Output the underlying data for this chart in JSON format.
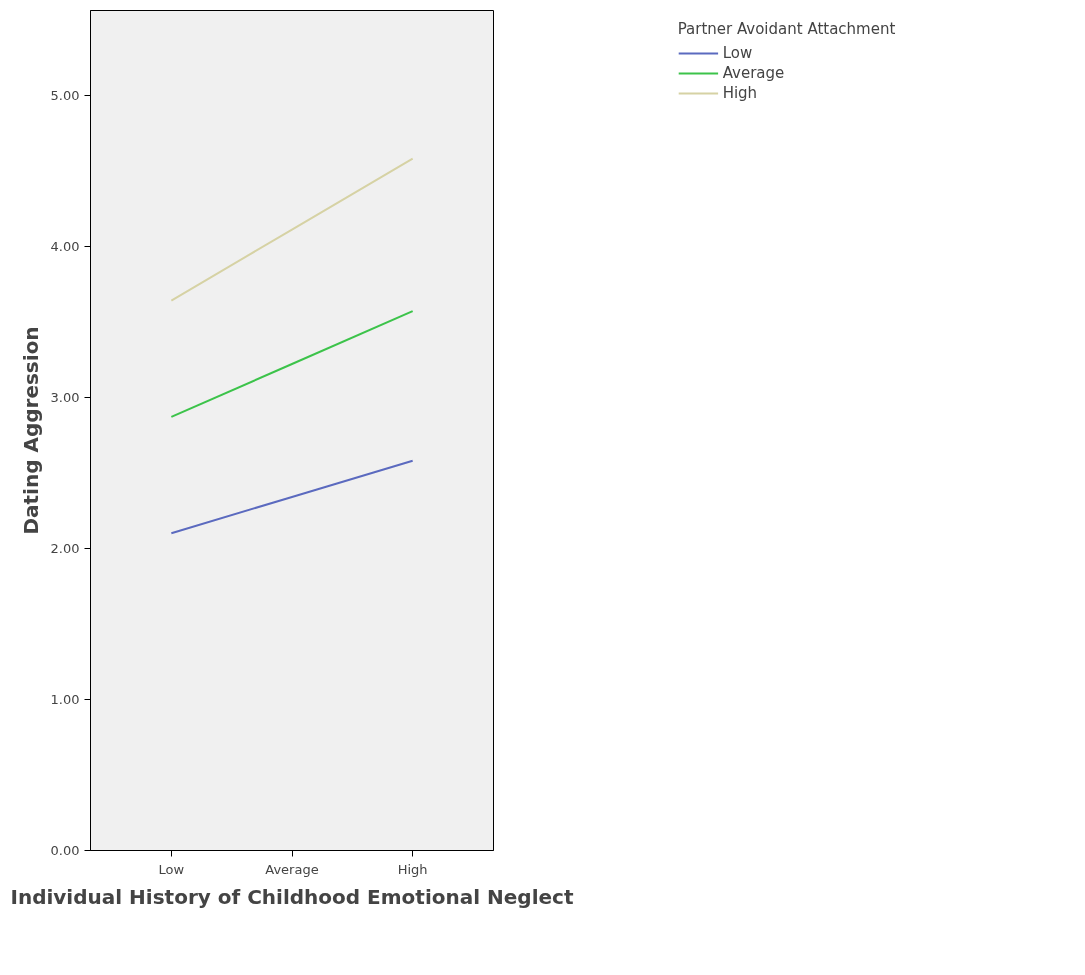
{
  "chart_data": {
    "type": "line",
    "xlabel": "Individual History of Childhood Emotional Neglect",
    "ylabel": "Dating Aggression",
    "legend_title": "Partner Avoidant Attachment",
    "categories": [
      "Low",
      "Average",
      "High"
    ],
    "series": [
      {
        "name": "Low",
        "color": "#5b6abf",
        "values": [
          2.1,
          2.34,
          2.58
        ]
      },
      {
        "name": "Average",
        "color": "#3cc34a",
        "values": [
          2.87,
          3.22,
          3.57
        ]
      },
      {
        "name": "High",
        "color": "#d6d2a4",
        "values": [
          3.64,
          4.11,
          4.58
        ]
      }
    ],
    "ylim": [
      0,
      5.56
    ],
    "yticks": [
      {
        "value": 0,
        "label": "0.00"
      },
      {
        "value": 1,
        "label": "1.00"
      },
      {
        "value": 2,
        "label": "2.00"
      },
      {
        "value": 3,
        "label": "3.00"
      },
      {
        "value": 4,
        "label": "4.00"
      },
      {
        "value": 5,
        "label": "5.00"
      }
    ],
    "legend": "right",
    "marker": "none",
    "line_style": "solid"
  }
}
